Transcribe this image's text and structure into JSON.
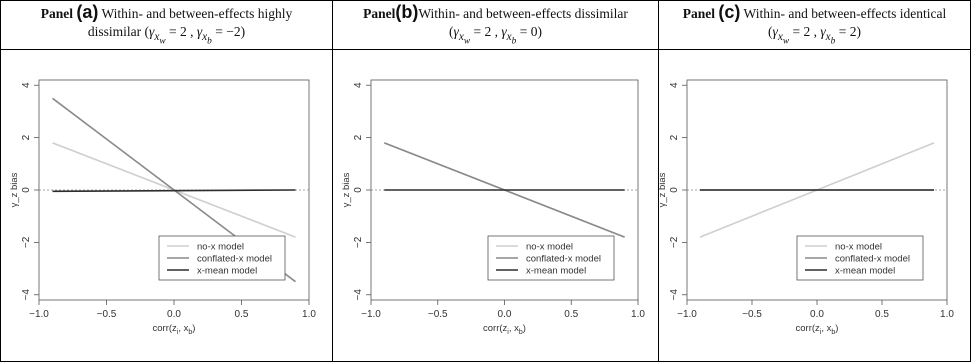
{
  "panels": [
    {
      "panel_word": "Panel",
      "panel_letter": "(a)",
      "title": "Within- and between-effects highly",
      "title_line2": "dissimilar",
      "param_w": "2",
      "param_b": "−2"
    },
    {
      "panel_word": "Panel",
      "panel_letter": "(b)",
      "title": "Within- and between-effects dissimilar",
      "title_line2": "",
      "param_w": "2",
      "param_b": "0"
    },
    {
      "panel_word": "Panel",
      "panel_letter": "(c)",
      "title": "Within- and between-effects identical",
      "title_line2": "",
      "param_w": "2",
      "param_b": "2"
    }
  ],
  "chart_data": [
    {
      "type": "line",
      "xlabel": "corr(z_i, x_b)",
      "ylabel": "γ_z bias",
      "xlim": [
        -1.0,
        1.0
      ],
      "ylim": [
        -4.2,
        4.2
      ],
      "xticks": [
        "-1.0",
        "-0.5",
        "0.0",
        "0.5",
        "1.0"
      ],
      "yticks": [
        "-4",
        "-2",
        "0",
        "2",
        "4"
      ],
      "reference_line_y": 0,
      "legend": [
        "no-x model",
        "conflated-x model",
        "x-mean model"
      ],
      "legend_position": "bottom-right",
      "series": [
        {
          "name": "no-x model",
          "color": "#cfcfcf",
          "x": [
            -0.9,
            0.9
          ],
          "y": [
            1.8,
            -1.8
          ]
        },
        {
          "name": "conflated-x model",
          "color": "#8a8a8a",
          "x": [
            -0.9,
            0.9
          ],
          "y": [
            3.5,
            -3.5
          ]
        },
        {
          "name": "x-mean model",
          "color": "#2e2e2e",
          "x": [
            -0.9,
            0.9
          ],
          "y": [
            -0.05,
            0.0
          ]
        }
      ]
    },
    {
      "type": "line",
      "xlabel": "corr(z_i, x_b)",
      "ylabel": "γ_z bias",
      "xlim": [
        -1.0,
        1.0
      ],
      "ylim": [
        -4.2,
        4.2
      ],
      "xticks": [
        "-1.0",
        "-0.5",
        "0.0",
        "0.5",
        "1.0"
      ],
      "yticks": [
        "-4",
        "-2",
        "0",
        "2",
        "4"
      ],
      "reference_line_y": 0,
      "legend": [
        "no-x model",
        "conflated-x model",
        "x-mean model"
      ],
      "legend_position": "bottom-right",
      "series": [
        {
          "name": "no-x model",
          "color": "#cfcfcf",
          "x": [
            -0.9,
            0.9
          ],
          "y": [
            1.8,
            -1.8
          ]
        },
        {
          "name": "conflated-x model",
          "color": "#8a8a8a",
          "x": [
            -0.9,
            0.9
          ],
          "y": [
            1.8,
            -1.8
          ]
        },
        {
          "name": "x-mean model",
          "color": "#2e2e2e",
          "x": [
            -0.9,
            0.9
          ],
          "y": [
            0.0,
            0.0
          ]
        }
      ]
    },
    {
      "type": "line",
      "xlabel": "corr(z_i, x_b)",
      "ylabel": "γ_z bias",
      "xlim": [
        -1.0,
        1.0
      ],
      "ylim": [
        -4.2,
        4.2
      ],
      "xticks": [
        "-1.0",
        "-0.5",
        "0.0",
        "0.5",
        "1.0"
      ],
      "yticks": [
        "-4",
        "-2",
        "0",
        "2",
        "4"
      ],
      "reference_line_y": 0,
      "legend": [
        "no-x model",
        "conflated-x model",
        "x-mean model"
      ],
      "legend_position": "bottom-right",
      "series": [
        {
          "name": "no-x model",
          "color": "#cfcfcf",
          "x": [
            -0.9,
            0.9
          ],
          "y": [
            -1.8,
            1.8
          ]
        },
        {
          "name": "conflated-x model",
          "color": "#8a8a8a",
          "x": [
            -0.9,
            0.9
          ],
          "y": [
            0.0,
            0.0
          ]
        },
        {
          "name": "x-mean model",
          "color": "#2e2e2e",
          "x": [
            -0.9,
            0.9
          ],
          "y": [
            0.0,
            0.0
          ]
        }
      ]
    }
  ]
}
